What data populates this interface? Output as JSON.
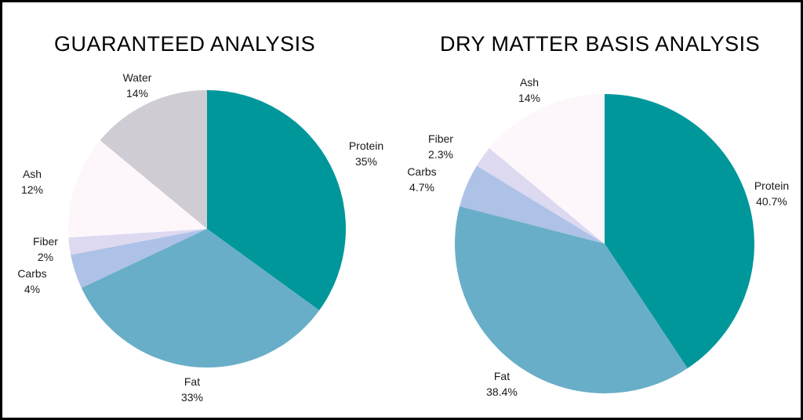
{
  "chart_data": [
    {
      "type": "pie",
      "title": "GUARANTEED ANALYSIS",
      "slices": [
        {
          "name": "Protein",
          "value": 35,
          "label": "35%",
          "color": "#00979b"
        },
        {
          "name": "Fat",
          "value": 33,
          "label": "33%",
          "color": "#69aec8"
        },
        {
          "name": "Carbs",
          "value": 4,
          "label": "4%",
          "color": "#adc2e6"
        },
        {
          "name": "Fiber",
          "value": 2,
          "label": "2%",
          "color": "#ddd9f1"
        },
        {
          "name": "Ash",
          "value": 12,
          "label": "12%",
          "color": "#fdf7fc"
        },
        {
          "name": "Water",
          "value": 14,
          "label": "14%",
          "color": "#cfcdd3"
        }
      ]
    },
    {
      "type": "pie",
      "title": "DRY MATTER BASIS ANALYSIS",
      "slices": [
        {
          "name": "Protein",
          "value": 40.7,
          "label": "40.7%",
          "color": "#00979b"
        },
        {
          "name": "Fat",
          "value": 38.4,
          "label": "38.4%",
          "color": "#69aec8"
        },
        {
          "name": "Carbs",
          "value": 4.7,
          "label": "4.7%",
          "color": "#adc2e6"
        },
        {
          "name": "Fiber",
          "value": 2.3,
          "label": "2.3%",
          "color": "#ddd9f1"
        },
        {
          "name": "Ash",
          "value": 14,
          "label": "14%",
          "color": "#fdf7fc"
        }
      ]
    }
  ]
}
